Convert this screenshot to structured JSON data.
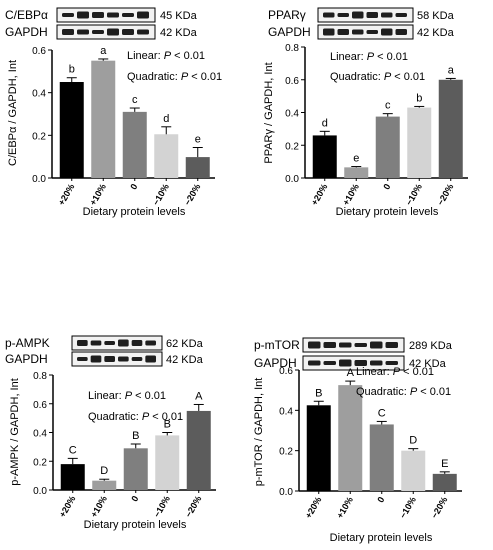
{
  "x_title": "Dietary protein levels",
  "categories": [
    "+20%",
    "+10%",
    "0",
    "−10%",
    "−20%"
  ],
  "bar_colors": [
    "#000000",
    "#9e9e9e",
    "#7f7f7f",
    "#d3d3d3",
    "#5c5c5c"
  ],
  "stats": {
    "linear": "Linear: ",
    "quadratic": "Quadratic: ",
    "p": "P",
    "threshold": " < 0.01"
  },
  "chart_data": [
    {
      "type": "bar",
      "ylabel": "C/EBPα / GAPDH, Int",
      "ylim": [
        0,
        0.6
      ],
      "yticks": [
        "0.0",
        "0.2",
        "0.4",
        "0.6"
      ],
      "values": [
        0.45,
        0.55,
        0.31,
        0.205,
        0.098
      ],
      "errors": [
        0.02,
        0.008,
        0.018,
        0.035,
        0.045
      ],
      "letters": [
        "b",
        "a",
        "c",
        "d",
        "e"
      ],
      "blot": {
        "target": "C/EBPα",
        "target_kda": "45 KDa",
        "control": "GAPDH",
        "control_kda": "42 KDa"
      }
    },
    {
      "type": "bar",
      "ylabel": "PPARγ / GAPDH, Int",
      "ylim": [
        0,
        0.8
      ],
      "yticks": [
        "0.0",
        "0.2",
        "0.4",
        "0.6",
        "0.8"
      ],
      "values": [
        0.26,
        0.065,
        0.375,
        0.43,
        0.6
      ],
      "errors": [
        0.025,
        0.005,
        0.018,
        0.007,
        0.008
      ],
      "letters": [
        "d",
        "e",
        "c",
        "b",
        "a"
      ],
      "blot": {
        "target": "PPARγ",
        "target_kda": "58 KDa",
        "control": "GAPDH",
        "control_kda": "42 KDa"
      }
    },
    {
      "type": "bar",
      "ylabel": "p-AMPK / GAPDH, Int",
      "ylim": [
        0,
        0.8
      ],
      "yticks": [
        "0.0",
        "0.2",
        "0.4",
        "0.6",
        "0.8"
      ],
      "values": [
        0.18,
        0.065,
        0.29,
        0.38,
        0.55
      ],
      "errors": [
        0.04,
        0.01,
        0.03,
        0.02,
        0.045
      ],
      "letters": [
        "C",
        "D",
        "B",
        "B",
        "A"
      ],
      "blot": {
        "target": "p-AMPK",
        "target_kda": "62 KDa",
        "control": "GAPDH",
        "control_kda": "42 KDa"
      }
    },
    {
      "type": "bar",
      "ylabel": "p-mTOR / GAPDH, Int",
      "ylim": [
        0,
        0.6
      ],
      "yticks": [
        "0.0",
        "0.2",
        "0.4",
        "0.6"
      ],
      "values": [
        0.425,
        0.525,
        0.33,
        0.2,
        0.085
      ],
      "errors": [
        0.02,
        0.02,
        0.015,
        0.01,
        0.01
      ],
      "letters": [
        "B",
        "A",
        "C",
        "D",
        "E"
      ],
      "blot": {
        "target": "p-mTOR",
        "target_kda": "289 KDa",
        "control": "GAPDH",
        "control_kda": "42 KDa"
      }
    }
  ]
}
